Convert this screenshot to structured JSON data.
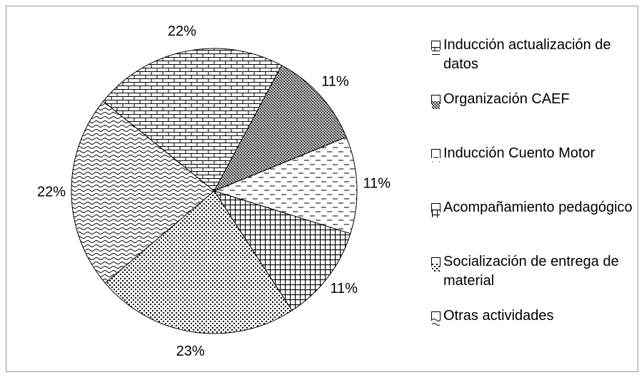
{
  "chart_data": {
    "type": "pie",
    "categories": [
      "Inducción actualización de datos",
      "Organización CAEF",
      "Inducción Cuento Motor",
      "Acompañamiento pedagógico",
      "Socialización de entrega de material",
      "Otras actividades"
    ],
    "values": [
      22,
      11,
      11,
      11,
      23,
      22
    ],
    "value_labels": [
      "22%",
      "11%",
      "11%",
      "11%",
      "23%",
      "22%"
    ],
    "color": "#000000"
  }
}
